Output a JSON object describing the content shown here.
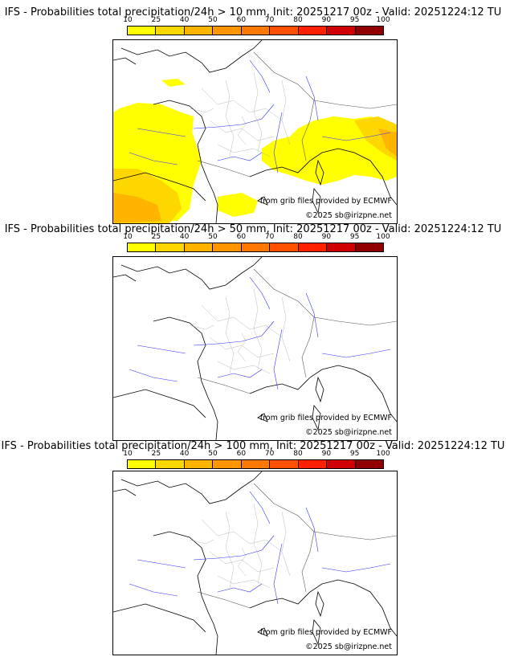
{
  "colorbar": {
    "ticks": [
      "10",
      "25",
      "40",
      "50",
      "60",
      "70",
      "80",
      "90",
      "95",
      "100"
    ],
    "colors": [
      "#ffff00",
      "#ffd700",
      "#ffb400",
      "#ff9600",
      "#ff7800",
      "#ff5000",
      "#ff2000",
      "#d00000",
      "#900000"
    ]
  },
  "credits": {
    "source": "from grib files provided by ECMWF",
    "copyright": "©2025 sb@irizpne.net"
  },
  "panels": [
    {
      "title": "IFS - Probabilities total precipitation/24h > 10 mm, Init: 20251217 00z - Valid: 20251224:12 TU",
      "threshold_mm": 10
    },
    {
      "title": "IFS - Probabilities total precipitation/24h > 50 mm, Init: 20251217 00z - Valid: 20251224:12 TU",
      "threshold_mm": 50
    },
    {
      "title": "IFS - Probabilities total precipitation/24h > 100 mm, Init: 20251217 00z - Valid: 20251224:12 TU",
      "threshold_mm": 100
    }
  ]
}
